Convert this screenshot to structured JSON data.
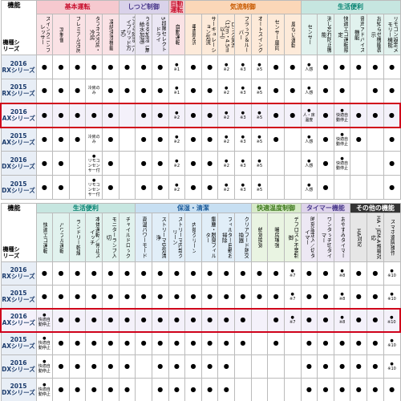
{
  "tables": [
    {
      "corner_function": "機能",
      "corner_model": "機種シリーズ",
      "groups": [
        {
          "name": "基本運転",
          "span": 5,
          "color": "#f6c9cf",
          "text": "#c8102e"
        },
        {
          "name": "しつど制御",
          "span": 3,
          "color": "#d9d2ea",
          "text": "#4b3a8c"
        },
        {
          "name": "自動運転",
          "span": 1,
          "color": "#f6c9cf",
          "text": "#c8102e"
        },
        {
          "name": "気流制御",
          "span": 7,
          "color": "#fbd7b8",
          "text": "#c85a00"
        },
        {
          "name": "生活便利",
          "span": 6,
          "color": "#c6e6e0",
          "text": "#00806e"
        }
      ],
      "columns": [
        "スイングコンプレッサー",
        "PI制御",
        "プレミアム冷房",
        "タフネス冷房・冷房",
        "凍結洗浄機能",
        "さらら除湿（ハイブリッド方式）",
        "うるる加湿（無給水加湿）",
        "5段階セレクトドライ",
        "自動運転",
        "垂直気流",
        "サーキュレーション気流",
        "ロング気流（12m・4.5m以上）",
        "フラップ＆ルーバー",
        "オートスイング",
        "センサー風向",
        "風ない運転",
        "センサー",
        "消し忘れ防止機能",
        "快適エコ運転限定",
        "音声アドバイス機能",
        "お知らせ機能表示",
        "リモコン設定メモリー機能"
      ],
      "rows": [
        {
          "year": "2016",
          "series": "RXシリーズ",
          "cells": [
            "●",
            "●",
            "●",
            "●",
            "●",
            "●",
            "●",
            "●",
            "●\n※1",
            "●",
            "●",
            "●\n※2",
            "●\n※3",
            "●\n※5",
            "●",
            "●",
            "●\n人感",
            "●",
            "●",
            "●",
            "●",
            "●"
          ]
        },
        {
          "year": "2015",
          "series": "RXシリーズ",
          "cells": [
            "●",
            "●",
            "●",
            "冷房のみ",
            "●",
            "●",
            "●",
            "●",
            "●\n※1",
            "●",
            "●",
            "●\n※2",
            "●\n※3",
            "●\n※5",
            "●",
            "●",
            "●\n人感",
            "●",
            "●",
            null,
            "●",
            "●"
          ]
        },
        {
          "year": "2016",
          "series": "AXシリーズ",
          "highlight": true,
          "cells": [
            "●",
            "●",
            "●",
            "●",
            "●",
            null,
            "●",
            "●",
            "●\n※2",
            "●",
            "●",
            "●\n※2",
            "●\n※3",
            "●\n※5",
            "●",
            "●",
            "●\n人・床温度",
            "●",
            "●\n快適自動停止",
            "●",
            "●",
            "●"
          ]
        },
        {
          "year": "2015",
          "series": "AXシリーズ",
          "cells": [
            "●",
            "●",
            "●",
            "冷房のみ",
            "●",
            null,
            "●",
            "●",
            "●\n※2",
            "●",
            "●",
            "●\n※2",
            "●\n※3",
            "●\n※5",
            "●",
            null,
            "●\n人感",
            "●",
            "●\n快適自動停止",
            "●",
            null,
            "●"
          ]
        },
        {
          "year": "2016",
          "series": "DXシリーズ",
          "cells": [
            "●",
            "●",
            null,
            "●\nリモコンセンサー付",
            "●",
            null,
            "●",
            "●",
            "●\n※2",
            "●",
            "●",
            "●\n※2",
            "●\n※3",
            "●\n※5",
            null,
            null,
            "●\n人感",
            "●",
            "●\n快適自動停止",
            null,
            null,
            "●"
          ]
        },
        {
          "year": "2015",
          "series": "DXシリーズ",
          "cells": [
            "●",
            "●",
            null,
            "●\nリモコンセンサー付",
            "●",
            null,
            "●",
            "●",
            "●\n※2",
            "●",
            "●",
            "●\n※2",
            "●\n※3",
            "●\n※5",
            null,
            null,
            "●\n人感",
            "●",
            null,
            null,
            null,
            "●"
          ]
        }
      ]
    },
    {
      "corner_function": "機能",
      "corner_model": "機種シリーズ",
      "groups": [
        {
          "name": "生活便利",
          "span": 6,
          "color": "#c6e6e0",
          "text": "#00806e"
        },
        {
          "name": "保湿・清潔",
          "span": 7,
          "color": "#c7dff2",
          "text": "#1d5c9a"
        },
        {
          "name": "快適温度制御",
          "span": 3,
          "color": "#d6eac8",
          "text": "#3f7a1e"
        },
        {
          "name": "タイマー機能",
          "span": 3,
          "color": "#ddd3ea",
          "text": "#4b3a8c"
        },
        {
          "name": "その他の機能",
          "span": 3,
          "color": "#333333",
          "text": "#ffffff"
        }
      ],
      "columns": [
        "快適エコ運転",
        "パワフル運転",
        "ランドリー乾燥",
        "本体運転／停止スイッチ",
        "モニターランプ入切",
        "チャイルドロック",
        "高温パワーモード",
        "ストリーマ空気清浄",
        "ストリーマ内部クリーン",
        "内部クリーン",
        "集塵・脱臭フィルター",
        "フィルター自動お掃除",
        "クリアフード熱交換器",
        "給気換気",
        "暖房増強",
        "デフロスト不要制御",
        "時刻設定入／切タイマー",
        "ワンタッチ切タイマー",
        "おやすみタイマー",
        "HA対応",
        "HA・JEM-A規格対応",
        "スマホ遠隔操作"
      ],
      "rows": [
        {
          "year": "2016",
          "series": "RXシリーズ",
          "cells": [
            "●",
            "●",
            "●",
            "●",
            "●",
            "●",
            "●",
            "●",
            "●",
            "●",
            "●",
            "●",
            "●",
            "●",
            "●",
            "●\n※7",
            "●",
            "●",
            "●\n※8",
            "●",
            "●",
            "●\n※10"
          ]
        },
        {
          "year": "2015",
          "series": "RXシリーズ",
          "cells": [
            "●",
            "●",
            "●",
            "●",
            "●",
            "●",
            "●",
            "●",
            "●",
            "●",
            "●",
            "●",
            "●",
            "●",
            "●",
            "●\n※7",
            "●",
            "●",
            "●\n※8",
            "●",
            "●",
            "●\n※10"
          ]
        },
        {
          "year": "2016",
          "series": "AXシリーズ",
          "highlight": true,
          "cells": [
            "●\n快適自動停止",
            "●",
            "●",
            "●",
            "●",
            "●",
            "●",
            "●",
            "●",
            "●",
            "●",
            "●",
            "●",
            null,
            "●",
            "●\n※7",
            "●",
            "●",
            "●\n※8",
            "●",
            "●",
            "●\n※10"
          ]
        },
        {
          "year": "2015",
          "series": "AXシリーズ",
          "cells": [
            "●\n快適自動停止",
            "●",
            "●",
            "●",
            "●",
            "●",
            "●",
            "●",
            "●",
            "●",
            "●",
            "●",
            "●",
            null,
            "●",
            null,
            "●",
            "●",
            "●",
            "●",
            "●",
            "●\n※10"
          ]
        },
        {
          "year": "2016",
          "series": "DXシリーズ",
          "cells": [
            "●\n快適自動停止",
            "●",
            "●",
            "●",
            "●",
            "●",
            null,
            "●",
            "●",
            "●",
            "●",
            "●",
            null,
            null,
            null,
            null,
            "●",
            "●",
            "●",
            "●",
            "●",
            "●\n※10"
          ]
        },
        {
          "year": "2015",
          "series": "DXシリーズ",
          "cells": [
            "●\n快適自動停止",
            "●",
            "●",
            "●",
            "●",
            "●",
            null,
            "●",
            "●",
            "●",
            "●",
            "●",
            null,
            null,
            null,
            null,
            "●",
            "●",
            "●",
            "●",
            "●",
            "●"
          ]
        }
      ]
    }
  ]
}
